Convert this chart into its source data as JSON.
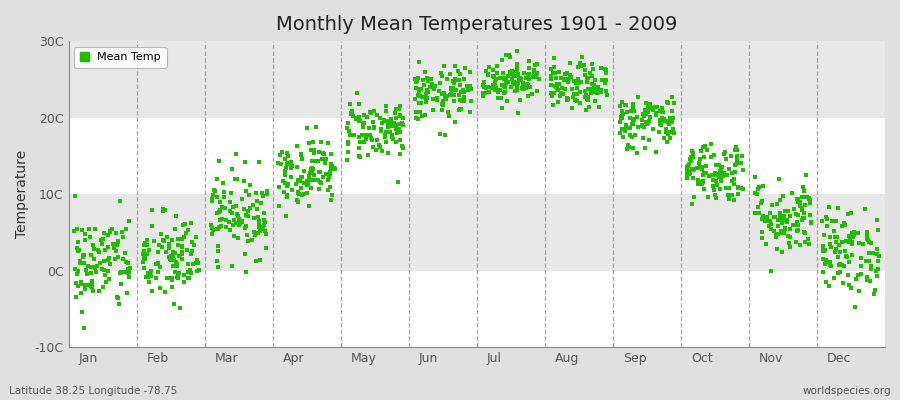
{
  "title": "Monthly Mean Temperatures 1901 - 2009",
  "ylabel": "Temperature",
  "subtitle_left": "Latitude 38.25 Longitude -78.75",
  "subtitle_right": "worldspecies.org",
  "months": [
    "Jan",
    "Feb",
    "Mar",
    "Apr",
    "May",
    "Jun",
    "Jul",
    "Aug",
    "Sep",
    "Oct",
    "Nov",
    "Dec"
  ],
  "month_means": [
    1.0,
    1.5,
    7.5,
    13.0,
    18.5,
    23.0,
    25.0,
    24.0,
    19.5,
    13.0,
    7.0,
    2.5
  ],
  "month_stds": [
    3.2,
    3.0,
    2.8,
    2.2,
    2.0,
    1.8,
    1.5,
    1.5,
    1.8,
    2.0,
    2.5,
    2.8
  ],
  "n_years": 109,
  "ylim": [
    -10,
    30
  ],
  "yticks": [
    -10,
    0,
    10,
    20,
    30
  ],
  "ytick_labels": [
    "-10C",
    "0C",
    "10C",
    "20C",
    "30C"
  ],
  "dot_color": "#22bb00",
  "dot_size": 5,
  "legend_label": "Mean Temp",
  "fig_bg_color": "#e0e0e0",
  "plot_bg_color": "#f0f0f0",
  "band_colors": [
    "#ffffff",
    "#e8e8e8"
  ],
  "dashed_line_color": "#888888"
}
